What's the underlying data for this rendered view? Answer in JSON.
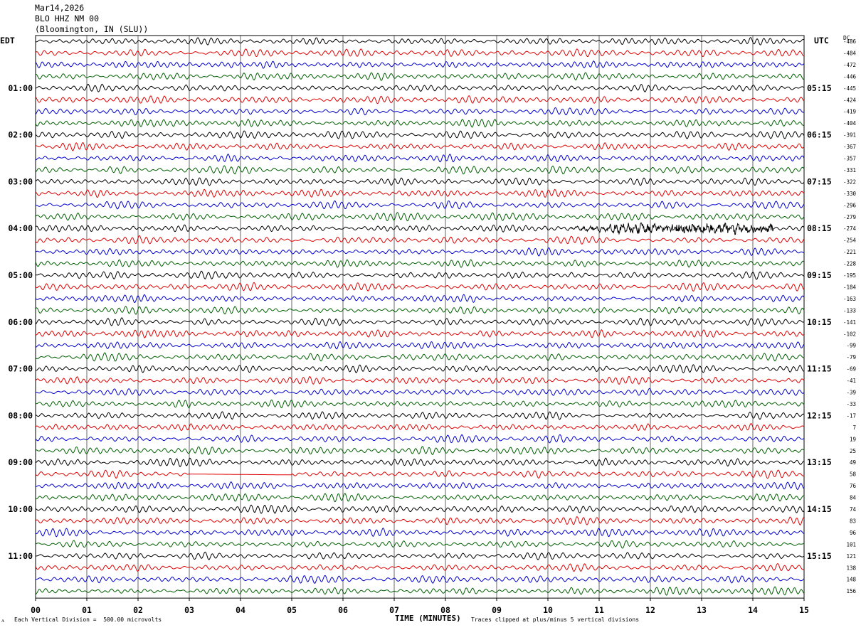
{
  "header": {
    "date": "Mar14,2026",
    "station": "BLO HHZ NM 00",
    "location": "(Bloomington, IN (SLU))"
  },
  "footer": {
    "scale_note": "Each Vertical Division =  500.00 microvolts",
    "clip_note": "Traces clipped at plus/minus 5 vertical divisions",
    "corner_mark": "ᴧ"
  },
  "chart_data": {
    "type": "line",
    "title": "",
    "xlabel": "TIME (MINUTES)",
    "ylabel_left": "EDT",
    "ylabel_right": "UTC",
    "dc_label": "DC",
    "xlim": [
      0,
      15
    ],
    "x_ticks": [
      "00",
      "01",
      "02",
      "03",
      "04",
      "05",
      "06",
      "07",
      "08",
      "09",
      "10",
      "11",
      "12",
      "13",
      "14",
      "15"
    ],
    "trace_colors": [
      "#000000",
      "#e00000",
      "#0000d0",
      "#006000"
    ],
    "traces_per_hour": 4,
    "minutes_per_trace": 15,
    "left_time_labels": [
      {
        "trace": 4,
        "label": "01:00"
      },
      {
        "trace": 8,
        "label": "02:00"
      },
      {
        "trace": 12,
        "label": "03:00"
      },
      {
        "trace": 16,
        "label": "04:00"
      },
      {
        "trace": 20,
        "label": "05:00"
      },
      {
        "trace": 24,
        "label": "06:00"
      },
      {
        "trace": 28,
        "label": "07:00"
      },
      {
        "trace": 32,
        "label": "08:00"
      },
      {
        "trace": 36,
        "label": "09:00"
      },
      {
        "trace": 40,
        "label": "10:00"
      },
      {
        "trace": 44,
        "label": "11:00"
      }
    ],
    "right_time_labels": [
      {
        "trace": 4,
        "label": "05:15"
      },
      {
        "trace": 8,
        "label": "06:15"
      },
      {
        "trace": 12,
        "label": "07:15"
      },
      {
        "trace": 16,
        "label": "08:15"
      },
      {
        "trace": 20,
        "label": "09:15"
      },
      {
        "trace": 24,
        "label": "10:15"
      },
      {
        "trace": 28,
        "label": "11:15"
      },
      {
        "trace": 32,
        "label": "12:15"
      },
      {
        "trace": 36,
        "label": "13:15"
      },
      {
        "trace": 40,
        "label": "14:15"
      },
      {
        "trace": 44,
        "label": "15:15"
      }
    ],
    "dc_offsets": [
      "-486",
      "-484",
      "-472",
      "-446",
      "-445",
      "-424",
      "-419",
      "-404",
      "-391",
      "-367",
      "-357",
      "-331",
      "-322",
      "-330",
      "-296",
      "-279",
      "-274",
      "-254",
      "-221",
      "-228",
      "-195",
      "-184",
      "-163",
      "-133",
      "-141",
      "-102",
      "-99",
      "-79",
      "-69",
      "-41",
      "-39",
      "-33",
      "-17",
      "7",
      "19",
      "25",
      "49",
      "58",
      "76",
      "84",
      "74",
      "83",
      "96",
      "101",
      "121",
      "138",
      "148",
      "156"
    ],
    "events": [
      {
        "trace": 16,
        "x_start_min": 10.3,
        "x_end_min": 14.4,
        "description": "high-frequency burst"
      },
      {
        "trace": 37,
        "x_start_min": 3.0,
        "x_end_min": 5.0,
        "description": "flat segment"
      }
    ]
  }
}
